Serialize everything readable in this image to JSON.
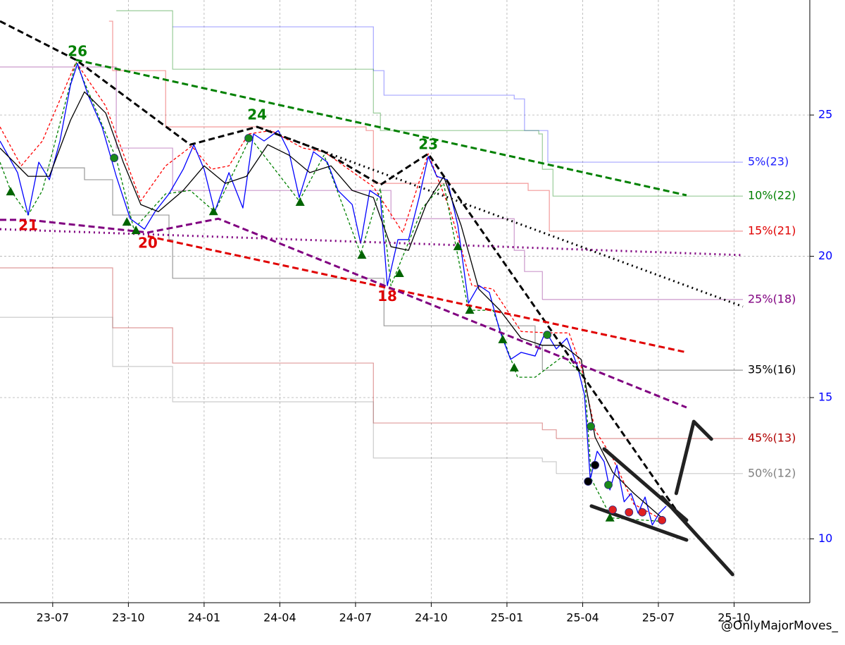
{
  "chart_data": {
    "type": "line",
    "xlim": [
      2023.326,
      2026.0
    ],
    "ylim": [
      7.74,
      29.07
    ],
    "xticks": [
      {
        "value": 2023.5,
        "label": "23-07"
      },
      {
        "value": 2023.75,
        "label": "23-10"
      },
      {
        "value": 2024.0,
        "label": "24-01"
      },
      {
        "value": 2024.25,
        "label": "24-04"
      },
      {
        "value": 2024.5,
        "label": "24-07"
      },
      {
        "value": 2024.75,
        "label": "24-10"
      },
      {
        "value": 2025.0,
        "label": "25-01"
      },
      {
        "value": 2025.25,
        "label": "25-04"
      },
      {
        "value": 2025.5,
        "label": "25-07"
      },
      {
        "value": 2025.75,
        "label": "25-10"
      }
    ],
    "yticks": [
      10,
      15,
      20,
      25
    ],
    "ytick_color": "#0000ff",
    "grid": true,
    "levels": [
      {
        "label": "5%(23)",
        "color": "#2020ff",
        "x": [
          2023.896,
          2024.547,
          2024.559,
          2024.594,
          2025.024,
          2025.058,
          2025.135,
          2025.512
        ],
        "values": [
          28.12,
          28.12,
          26.57,
          25.7,
          25.57,
          24.45,
          23.33,
          23.33
        ]
      },
      {
        "label": "10%(22)",
        "color": "#008000",
        "x": [
          2023.71,
          2023.884,
          2023.896,
          2024.535,
          2024.559,
          2024.582,
          2025.105,
          2025.117,
          2025.152,
          2025.593
        ],
        "values": [
          28.69,
          28.69,
          26.62,
          26.62,
          25.07,
          24.45,
          24.33,
          23.08,
          22.13,
          22.13
        ]
      },
      {
        "label": "15%(21)",
        "color": "#e00000",
        "x": [
          2023.686,
          2023.698,
          2023.873,
          2024.535,
          2024.559,
          2025.07,
          2025.14
        ],
        "values": [
          28.32,
          26.57,
          24.58,
          24.45,
          22.58,
          22.33,
          20.89
        ]
      },
      {
        "label": "25%(18)",
        "color": "#800080",
        "x": [
          2023.326,
          2023.698,
          2023.71,
          2023.884,
          2023.896,
          2024.582,
          2024.617,
          2025.024,
          2025.058,
          2025.117
        ],
        "values": [
          26.7,
          26.7,
          23.83,
          23.83,
          22.33,
          22.33,
          21.33,
          20.21,
          19.46,
          18.47
        ]
      },
      {
        "label": "35%(16)",
        "color": "#000000",
        "x": [
          2023.326,
          2023.593,
          2023.605,
          2023.675,
          2023.698,
          2023.884,
          2023.896,
          2024.57,
          2024.594,
          2025.047,
          2025.093,
          2025.117
        ],
        "values": [
          23.13,
          23.13,
          22.71,
          22.71,
          21.46,
          20.59,
          19.22,
          19.22,
          17.54,
          17.54,
          16.85,
          15.97
        ]
      },
      {
        "label": "45%(13)",
        "color": "#b00000",
        "x": [
          2023.326,
          2023.686,
          2023.698,
          2023.884,
          2023.896,
          2024.535,
          2024.559,
          2025.117,
          2025.163
        ],
        "values": [
          19.59,
          19.59,
          17.47,
          17.47,
          16.22,
          16.22,
          14.1,
          13.86,
          13.55
        ]
      },
      {
        "label": "50%(12)",
        "color": "#808080",
        "x": [
          2023.326,
          2023.686,
          2023.698,
          2023.884,
          2023.896,
          2024.535,
          2024.559,
          2025.117,
          2025.163
        ],
        "values": [
          17.84,
          17.84,
          16.1,
          16.1,
          14.85,
          14.85,
          12.86,
          12.73,
          12.31
        ]
      }
    ],
    "trendlines": [
      {
        "color": "#000000",
        "style": "dashed",
        "width": 3,
        "x": [
          2023.326,
          2023.577,
          2023.954,
          2024.175,
          2024.396,
          2024.582,
          2024.74,
          2025.593
        ],
        "values": [
          28.32,
          26.95,
          23.95,
          24.58,
          23.7,
          22.53,
          23.63,
          10.49
        ]
      },
      {
        "color": "#000000",
        "style": "dotted",
        "width": 3,
        "x": [
          2024.175,
          2025.779
        ],
        "values": [
          24.58,
          18.22
        ]
      },
      {
        "color": "#008000",
        "style": "dashed",
        "width": 3,
        "x": [
          2023.577,
          2025.593
        ],
        "values": [
          26.95,
          22.16
        ]
      },
      {
        "color": "#e00000",
        "style": "dashed",
        "width": 3,
        "x": [
          2023.814,
          2025.593
        ],
        "values": [
          20.71,
          16.6
        ]
      },
      {
        "color": "#800080",
        "style": "dashed",
        "width": 3,
        "x": [
          2023.326,
          2023.419,
          2023.814,
          2024.047,
          2025.593
        ],
        "values": [
          21.29,
          21.29,
          20.84,
          21.33,
          14.65
        ]
      },
      {
        "color": "#800080",
        "style": "dotted",
        "width": 3,
        "x": [
          2023.326,
          2025.779
        ],
        "values": [
          20.96,
          20.04
        ]
      },
      {
        "color": "#222222",
        "style": "solid",
        "width": 5,
        "x": [
          2025.321,
          2025.593
        ],
        "values": [
          13.18,
          10.66
        ]
      },
      {
        "color": "#222222",
        "style": "solid",
        "width": 5,
        "x": [
          2025.279,
          2025.593
        ],
        "values": [
          11.16,
          9.96
        ]
      },
      {
        "color": "#222222",
        "style": "solid",
        "width": 5,
        "x": [
          2025.512,
          2025.745
        ],
        "values": [
          11.48,
          8.74
        ]
      },
      {
        "color": "#222222",
        "style": "solid",
        "width": 5,
        "x": [
          2025.559,
          2025.617,
          2025.675
        ],
        "values": [
          11.61,
          14.15,
          13.53
        ]
      }
    ],
    "series": [
      {
        "color": "#ff0000",
        "style": "dashed",
        "x": [
          2023.326,
          2023.396,
          2023.466,
          2023.577,
          2023.675,
          2023.791,
          2023.873,
          2023.959,
          2024.024,
          2024.082,
          2024.147,
          2024.221,
          2024.326,
          2024.396,
          2024.559,
          2024.656,
          2024.74,
          2024.814,
          2024.884,
          2024.954,
          2025.047,
          2025.135,
          2025.205,
          2025.245,
          2025.291,
          2025.349,
          2025.419,
          2025.524
        ],
        "values": [
          24.58,
          23.2,
          24.08,
          26.87,
          25.32,
          21.96,
          23.2,
          23.9,
          23.08,
          23.2,
          24.33,
          24.45,
          23.83,
          23.7,
          22.46,
          20.84,
          23.63,
          21.58,
          18.97,
          18.84,
          17.34,
          17.29,
          17.29,
          16.1,
          13.85,
          12.86,
          11.23,
          10.61
        ]
      },
      {
        "color": "#008000",
        "style": "dashed",
        "x": [
          2023.326,
          2023.361,
          2023.419,
          2023.466,
          2023.577,
          2023.71,
          2023.768,
          2023.873,
          2023.954,
          2024.035,
          2024.152,
          2024.314,
          2024.396,
          2024.517,
          2024.582,
          2024.617,
          2024.721,
          2024.791,
          2024.873,
          2024.954,
          2025.035,
          2025.093,
          2025.186,
          2025.256,
          2025.279,
          2025.345,
          2025.524
        ],
        "values": [
          23.33,
          22.33,
          21.46,
          22.33,
          26.87,
          23.45,
          20.96,
          22.21,
          22.33,
          21.58,
          24.2,
          21.96,
          23.58,
          20.09,
          22.4,
          18.96,
          21.71,
          22.58,
          18.09,
          18.09,
          15.72,
          15.72,
          16.47,
          15.72,
          12.11,
          10.74,
          10.61
        ]
      },
      {
        "color": "#0000ff",
        "style": "solid",
        "x": [
          2023.326,
          2023.384,
          2023.419,
          2023.454,
          2023.489,
          2023.524,
          2023.559,
          2023.582,
          2023.617,
          2023.663,
          2023.71,
          2023.756,
          2023.803,
          2023.838,
          2023.884,
          2023.931,
          2023.966,
          2024.0,
          2024.035,
          2024.082,
          2024.128,
          2024.163,
          2024.198,
          2024.245,
          2024.28,
          2024.314,
          2024.361,
          2024.407,
          2024.442,
          2024.489,
          2024.517,
          2024.547,
          2024.582,
          2024.605,
          2024.64,
          2024.675,
          2024.71,
          2024.74,
          2024.768,
          2024.803,
          2024.838,
          2024.873,
          2024.907,
          2024.942,
          2024.977,
          2025.012,
          2025.047,
          2025.093,
          2025.128,
          2025.163,
          2025.198,
          2025.233,
          2025.256,
          2025.275,
          2025.298,
          2025.321,
          2025.34,
          2025.363,
          2025.387,
          2025.41,
          2025.433,
          2025.456,
          2025.48,
          2025.503,
          2025.526
        ],
        "values": [
          24.08,
          22.96,
          21.46,
          23.33,
          22.71,
          24.08,
          26.07,
          26.82,
          25.7,
          24.58,
          22.83,
          21.33,
          20.96,
          21.58,
          22.21,
          23.08,
          23.95,
          23.08,
          21.58,
          22.96,
          21.71,
          24.33,
          24.08,
          24.45,
          23.7,
          22.08,
          23.7,
          23.33,
          22.33,
          21.83,
          20.46,
          22.33,
          22.08,
          18.96,
          20.59,
          20.59,
          22.08,
          23.53,
          22.83,
          22.71,
          21.08,
          18.34,
          18.97,
          18.72,
          17.34,
          16.35,
          16.6,
          16.47,
          17.34,
          16.72,
          17.1,
          16.1,
          15.1,
          12.11,
          13.1,
          12.73,
          11.73,
          12.61,
          11.31,
          11.61,
          10.91,
          11.48,
          10.49,
          10.91,
          11.16
        ]
      },
      {
        "color": "#000000",
        "style": "solid",
        "x": [
          2023.326,
          2023.419,
          2023.489,
          2023.559,
          2023.605,
          2023.675,
          2023.733,
          2023.791,
          2023.849,
          2023.931,
          2024.0,
          2024.07,
          2024.14,
          2024.21,
          2024.28,
          2024.349,
          2024.419,
          2024.489,
          2024.559,
          2024.617,
          2024.675,
          2024.733,
          2024.791,
          2024.849,
          2024.907,
          2024.977,
          2025.047,
          2025.117,
          2025.186,
          2025.245,
          2025.291,
          2025.349,
          2025.419,
          2025.512
        ],
        "values": [
          23.83,
          22.83,
          22.83,
          24.82,
          25.82,
          25.07,
          23.33,
          21.83,
          21.58,
          22.33,
          23.2,
          22.58,
          22.83,
          23.95,
          23.58,
          22.96,
          23.2,
          22.33,
          22.08,
          20.34,
          20.21,
          21.83,
          22.83,
          21.08,
          18.84,
          18.09,
          17.1,
          16.85,
          16.85,
          16.35,
          13.6,
          12.36,
          11.61,
          10.74
        ]
      }
    ],
    "markers": [
      {
        "shape": "triangle",
        "color": "#006400",
        "x": [
          2023.361,
          2023.745,
          2023.775,
          2024.031,
          2024.317,
          2024.521,
          2024.645,
          2024.838,
          2024.877,
          2024.986,
          2025.024,
          2025.34
        ],
        "values": [
          22.28,
          21.21,
          20.91,
          21.58,
          21.91,
          20.04,
          19.39,
          20.34,
          18.09,
          17.05,
          16.05,
          10.74
        ]
      },
      {
        "shape": "circle",
        "color": "#1a8a1a",
        "x": [
          2023.703,
          2024.147,
          2025.133,
          2025.277,
          2025.335
        ],
        "values": [
          23.48,
          24.18,
          17.22,
          13.98,
          11.91
        ]
      },
      {
        "shape": "circle",
        "color": "#e02020",
        "x": [
          2025.349,
          2025.403,
          2025.447,
          2025.512
        ],
        "values": [
          11.03,
          10.94,
          10.94,
          10.66
        ]
      },
      {
        "shape": "circle",
        "color": "#000000",
        "x": [
          2025.268,
          2025.291
        ],
        "values": [
          12.03,
          12.61
        ]
      }
    ],
    "annotations": [
      {
        "text": "26",
        "x": 2023.582,
        "y": 26.82,
        "color": "#008000",
        "place": "above"
      },
      {
        "text": "24",
        "x": 2024.175,
        "y": 24.58,
        "color": "#008000",
        "place": "above"
      },
      {
        "text": "23",
        "x": 2024.74,
        "y": 23.53,
        "color": "#008000",
        "place": "above"
      },
      {
        "text": "21",
        "x": 2023.419,
        "y": 21.46,
        "color": "#e00000",
        "place": "below"
      },
      {
        "text": "20",
        "x": 2023.814,
        "y": 20.84,
        "color": "#e00000",
        "place": "below"
      },
      {
        "text": "18",
        "x": 2024.605,
        "y": 18.96,
        "color": "#e00000",
        "place": "below"
      }
    ],
    "watermark": "@OnlyMajorMoves_"
  }
}
